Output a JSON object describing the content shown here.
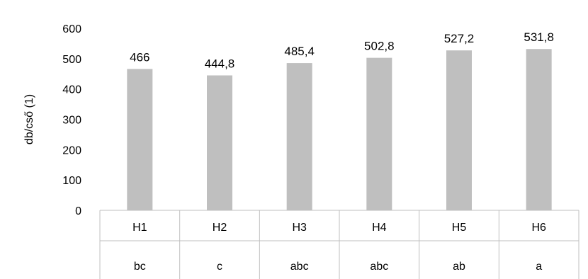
{
  "chart_data": {
    "type": "bar",
    "title": "",
    "xlabel": "",
    "ylabel": "db/cső (1)",
    "ylim": [
      0,
      600
    ],
    "yticks": [
      0,
      100,
      200,
      300,
      400,
      500,
      600
    ],
    "categories": [
      "H1",
      "H2",
      "H3",
      "H4",
      "H5",
      "H6"
    ],
    "group_letters": [
      "bc",
      "c",
      "abc",
      "abc",
      "ab",
      "a"
    ],
    "values": [
      466,
      444.8,
      485.4,
      502.8,
      527.2,
      531.8
    ],
    "data_labels": [
      "466",
      "444,8",
      "485,4",
      "502,8",
      "527,2",
      "531,8"
    ],
    "grid": false,
    "legend": "none",
    "bar_color": "#bfbfbf",
    "axis_color": "#bfbfbf"
  }
}
